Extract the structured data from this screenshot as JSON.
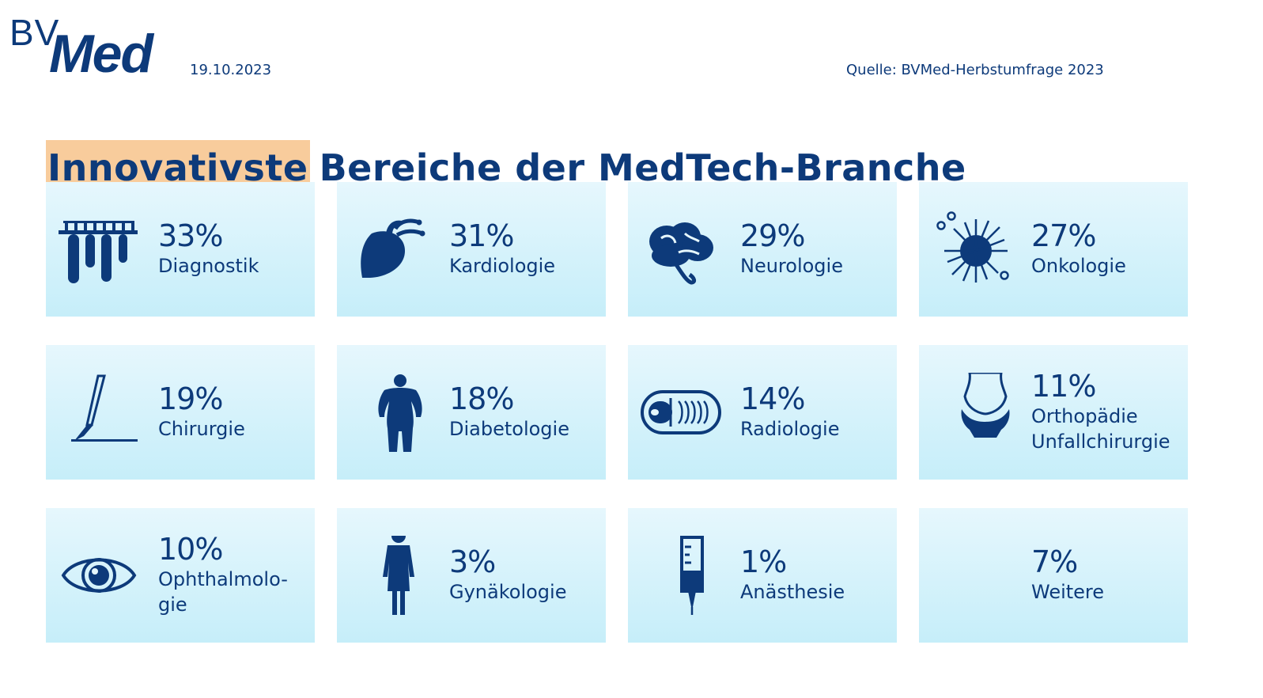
{
  "logo": {
    "bv": "BV",
    "med": "Med"
  },
  "header": {
    "date": "19.10.2023",
    "source": "Quelle: BVMed-Herbstumfrage 2023"
  },
  "title": {
    "highlight": "Innovativste",
    "rest": "Bereiche der MedTech-Branche"
  },
  "colors": {
    "brand": "#0d3a7a",
    "highlight": "#f8cc9c",
    "tile_top": "#e6f7fd",
    "tile_bottom": "#c6eef9"
  },
  "tiles": [
    {
      "percent": "33%",
      "label": "Diagnostik",
      "icon": "test-tubes-icon"
    },
    {
      "percent": "31%",
      "label": "Kardiologie",
      "icon": "heart-icon"
    },
    {
      "percent": "29%",
      "label": "Neurologie",
      "icon": "brain-icon"
    },
    {
      "percent": "27%",
      "label": "Onkologie",
      "icon": "cancer-cell-icon"
    },
    {
      "percent": "19%",
      "label": "Chirurgie",
      "icon": "scalpel-icon"
    },
    {
      "percent": "18%",
      "label": "Diabetologie",
      "icon": "person-icon"
    },
    {
      "percent": "14%",
      "label": "Radiologie",
      "icon": "mri-scanner-icon"
    },
    {
      "percent": "11%",
      "label": "Orthopädie\nUnfallchirurgie",
      "icon": "joint-icon"
    },
    {
      "percent": "10%",
      "label": "Ophthalmolo-\ngie",
      "icon": "eye-icon"
    },
    {
      "percent": "3%",
      "label": "Gynäkologie",
      "icon": "woman-icon"
    },
    {
      "percent": "1%",
      "label": "Anästhesie",
      "icon": "syringe-icon"
    },
    {
      "percent": "7%",
      "label": "Weitere",
      "icon": ""
    }
  ]
}
